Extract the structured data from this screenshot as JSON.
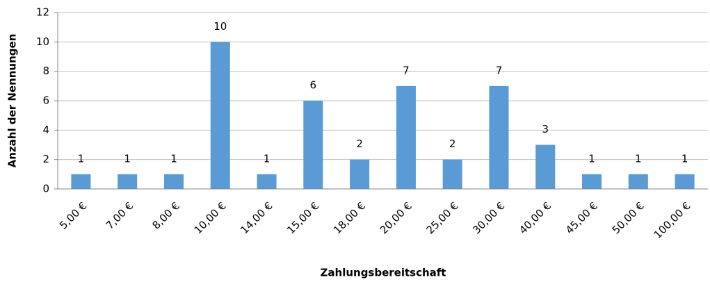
{
  "chart_data": {
    "type": "bar",
    "x_label": "Zahlungsbereitschaft",
    "y_label": "Anzahl der Nennungen",
    "categories": [
      "5,00 €",
      "7,00 €",
      "8,00 €",
      "10,00 €",
      "14,00 €",
      "15,00 €",
      "18,00 €",
      "20,00 €",
      "25,00 €",
      "30,00 €",
      "40,00 €",
      "45,00 €",
      "50,00 €",
      "100,00 €"
    ],
    "values": [
      1,
      1,
      1,
      10,
      1,
      6,
      2,
      7,
      2,
      7,
      3,
      1,
      1,
      1
    ],
    "color": "#5b9bd5",
    "ylim": [
      0,
      12
    ],
    "yticks": [
      0,
      2,
      4,
      6,
      8,
      10,
      12
    ],
    "grid": true
  }
}
